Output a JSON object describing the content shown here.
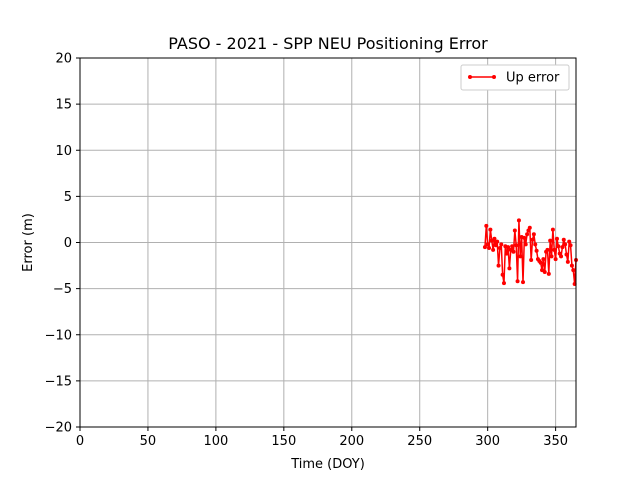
{
  "chart_data": {
    "type": "line",
    "title": "PASO - 2021 - SPP NEU Positioning Error",
    "xlabel": "Time (DOY)",
    "ylabel": "Error (m)",
    "xlim": [
      0,
      365
    ],
    "ylim": [
      -20,
      20
    ],
    "xticks": [
      0,
      50,
      100,
      150,
      200,
      250,
      300,
      350
    ],
    "yticks": [
      -20,
      -15,
      -10,
      -5,
      0,
      5,
      10,
      15,
      20
    ],
    "xtick_labels": [
      "0",
      "50",
      "100",
      "150",
      "200",
      "250",
      "300",
      "350"
    ],
    "ytick_labels": [
      "−20",
      "−15",
      "−10",
      "−5",
      "0",
      "5",
      "10",
      "15",
      "20"
    ],
    "grid": true,
    "legend_position": "top-right",
    "series": [
      {
        "name": "Up error",
        "color": "#ff0000",
        "marker": "circle",
        "x": [
          298,
          299,
          300,
          301,
          302,
          303,
          304,
          305,
          306,
          307,
          308,
          309,
          310,
          311,
          312,
          313,
          314,
          315,
          316,
          317,
          318,
          319,
          320,
          321,
          322,
          323,
          324,
          325,
          326,
          327,
          328,
          329,
          330,
          331,
          332,
          333,
          334,
          335,
          336,
          337,
          338,
          339,
          340,
          341,
          342,
          343,
          344,
          345,
          346,
          347,
          348,
          349,
          350,
          351,
          352,
          353,
          354,
          355,
          356,
          357,
          358,
          359,
          360,
          361,
          362,
          363,
          364,
          365
        ],
        "y": [
          -0.5,
          1.8,
          -0.2,
          -0.6,
          1.4,
          0.2,
          -0.8,
          0.4,
          -0.3,
          0.1,
          -2.5,
          -0.6,
          -0.2,
          -3.5,
          -4.4,
          -0.4,
          -1.2,
          -0.5,
          -2.8,
          -0.8,
          -0.4,
          -1.0,
          1.3,
          -0.3,
          -4.2,
          2.4,
          -1.5,
          0.6,
          -4.3,
          0.5,
          -0.2,
          0.9,
          1.3,
          1.6,
          -1.9,
          0.3,
          0.9,
          -0.2,
          -0.9,
          -1.8,
          -2.0,
          -2.2,
          -3.0,
          -1.8,
          -3.2,
          -1.0,
          -0.8,
          -3.4,
          0.2,
          -1.5,
          1.4,
          -0.8,
          -1.8,
          0.4,
          -0.4,
          -1.2,
          -1.5,
          -0.5,
          0.3,
          -0.2,
          -1.3,
          -2.1,
          0.1,
          -0.3,
          -2.5,
          -3.0,
          -4.5,
          -1.9
        ]
      }
    ]
  }
}
